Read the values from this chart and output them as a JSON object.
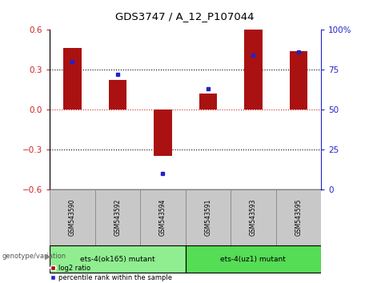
{
  "title": "GDS3747 / A_12_P107044",
  "samples": [
    "GSM543590",
    "GSM543592",
    "GSM543594",
    "GSM543591",
    "GSM543593",
    "GSM543595"
  ],
  "log2_ratio": [
    0.46,
    0.22,
    -0.35,
    0.12,
    0.6,
    0.44
  ],
  "percentile_rank": [
    80,
    72,
    10,
    63,
    84,
    86
  ],
  "groups": [
    {
      "label": "ets-4(ok165) mutant",
      "samples_idx": [
        0,
        1,
        2
      ],
      "color": "#90ee90"
    },
    {
      "label": "ets-4(uz1) mutant",
      "samples_idx": [
        3,
        4,
        5
      ],
      "color": "#55dd55"
    }
  ],
  "bar_color": "#aa1111",
  "dot_color": "#2222cc",
  "ylim_left": [
    -0.6,
    0.6
  ],
  "ylim_right": [
    0,
    100
  ],
  "yticks_left": [
    -0.6,
    -0.3,
    0,
    0.3,
    0.6
  ],
  "yticks_right": [
    0,
    25,
    50,
    75,
    100
  ],
  "left_tick_color": "#cc2222",
  "right_tick_color": "#2222cc",
  "hline_zero_color": "#cc2222",
  "hline_other_color": "#000000",
  "bg_color": "#ffffff",
  "sample_box_color": "#c8c8c8",
  "genotype_label": "genotype/variation",
  "legend_label_red": "log2 ratio",
  "legend_label_blue": "percentile rank within the sample",
  "bar_width": 0.4
}
